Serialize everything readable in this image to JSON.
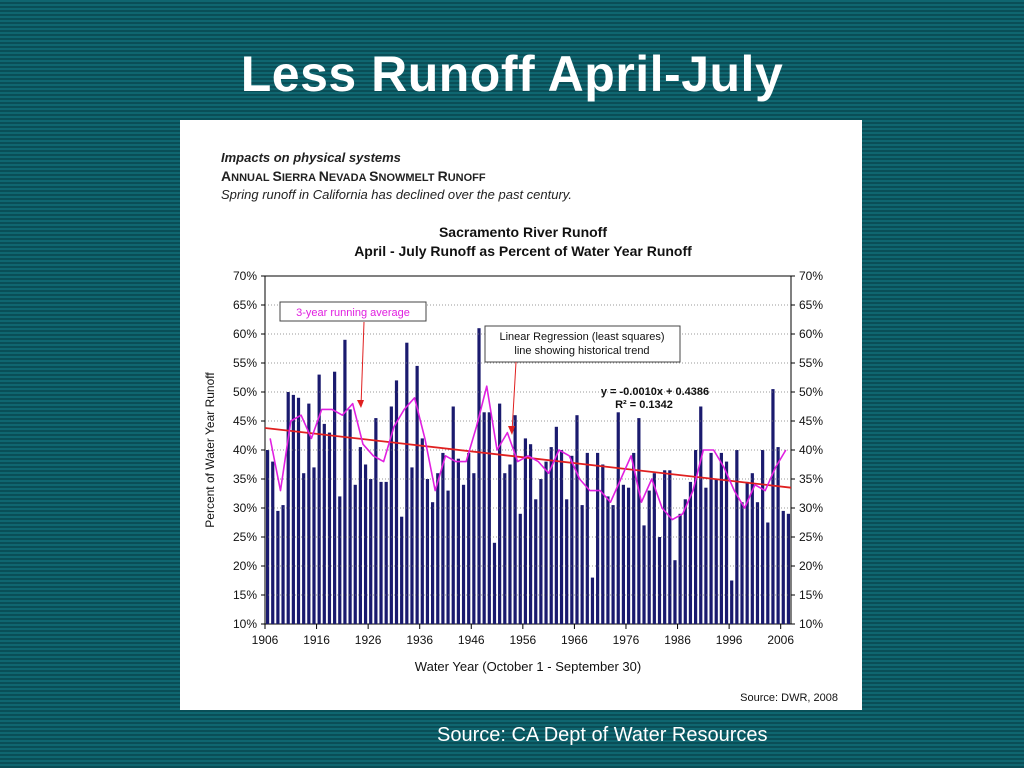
{
  "slide": {
    "title": "Less Runoff April-July",
    "source": "Source: CA Dept of Water Resources"
  },
  "figure": {
    "header_line1": "Impacts on physical systems",
    "header_line2_parts": [
      "A",
      "NNUAL ",
      "S",
      "IERRA ",
      "N",
      "EVADA ",
      "S",
      "NOWMELT ",
      "R",
      "UNOFF"
    ],
    "header_line3": "Spring runoff in California has declined over the past century.",
    "footer_source": "Source:  DWR, 2008"
  },
  "colors": {
    "background": "#0d5d67",
    "bars": "#1a1a6e",
    "running_avg": "#e020e0",
    "regression": "#e02020",
    "annotation_text": "#e020e0"
  },
  "chart_data": {
    "type": "bar",
    "title": "Sacramento River Runoff",
    "subtitle": "April - July Runoff as Percent of Water Year Runoff",
    "xlabel": "Water Year  (October 1 - September 30)",
    "ylabel": "Percent of Water Year Runoff",
    "xlim": [
      1906,
      2008
    ],
    "ylim": [
      10,
      70
    ],
    "x_ticks": [
      "1906",
      "1916",
      "1926",
      "1936",
      "1946",
      "1956",
      "1966",
      "1976",
      "1986",
      "1996",
      "2006"
    ],
    "y_ticks": [
      "10%",
      "15%",
      "20%",
      "25%",
      "30%",
      "35%",
      "40%",
      "45%",
      "50%",
      "55%",
      "60%",
      "65%",
      "70%"
    ],
    "annotations": {
      "running_avg_label": "3-year running average",
      "regression_label_line1": "Linear Regression (least squares)",
      "regression_label_line2": "line showing historical trend",
      "equation": "y = -0.0010x + 0.4386",
      "r_squared": "R² = 0.1342"
    },
    "regression": {
      "start": 43.8,
      "end": 33.5
    },
    "series": [
      {
        "type": "bar",
        "x": [
          1906,
          1907,
          1908,
          1909,
          1910,
          1911,
          1912,
          1913,
          1914,
          1915,
          1916,
          1917,
          1918,
          1919,
          1920,
          1921,
          1922,
          1923,
          1924,
          1925,
          1926,
          1927,
          1928,
          1929,
          1930,
          1931,
          1932,
          1933,
          1934,
          1935,
          1936,
          1937,
          1938,
          1939,
          1940,
          1941,
          1942,
          1943,
          1944,
          1945,
          1946,
          1947,
          1948,
          1949,
          1950,
          1951,
          1952,
          1953,
          1954,
          1955,
          1956,
          1957,
          1958,
          1959,
          1960,
          1961,
          1962,
          1963,
          1964,
          1965,
          1966,
          1967,
          1968,
          1969,
          1970,
          1971,
          1972,
          1973,
          1974,
          1975,
          1976,
          1977,
          1978,
          1979,
          1980,
          1981,
          1982,
          1983,
          1984,
          1985,
          1986,
          1987,
          1988,
          1989,
          1990,
          1991,
          1992,
          1993,
          1994,
          1995,
          1996,
          1997,
          1998,
          1999,
          2000,
          2001,
          2002,
          2003,
          2004,
          2005,
          2006,
          2007
        ],
        "values": [
          40,
          38,
          29.5,
          30.5,
          50,
          49.5,
          49,
          36,
          48,
          37,
          53,
          44.5,
          43,
          53.5,
          32,
          59,
          47,
          34,
          40.5,
          37.5,
          35,
          45.5,
          34.5,
          34.5,
          47.5,
          52,
          28.5,
          58.5,
          37,
          54.5,
          42,
          35,
          31,
          36,
          39.5,
          33,
          47.5,
          38.5,
          34,
          39.5,
          36,
          61,
          46.5,
          46.5,
          24,
          48,
          36,
          37.5,
          46,
          29,
          42,
          41,
          31.5,
          35,
          38,
          40.5,
          44,
          40,
          31.5,
          39,
          46,
          30.5,
          39.5,
          18,
          39.5,
          37.5,
          32,
          30.5,
          46.5,
          34,
          33.5,
          39.5,
          45.5,
          27,
          33,
          36,
          25,
          36.5,
          36.5,
          21,
          29,
          31.5,
          34.5,
          40,
          47.5,
          33.5,
          39.5,
          35,
          39.5,
          38,
          17.5,
          40,
          31,
          34.5,
          36,
          31,
          40,
          27.5,
          50.5,
          40.5,
          29.5,
          29
        ]
      },
      {
        "type": "line",
        "name": "3-year running average",
        "x": [
          1907,
          1909,
          1911,
          1913,
          1915,
          1917,
          1919,
          1921,
          1923,
          1925,
          1927,
          1929,
          1931,
          1933,
          1935,
          1937,
          1939,
          1941,
          1943,
          1945,
          1947,
          1949,
          1951,
          1953,
          1955,
          1957,
          1959,
          1961,
          1963,
          1965,
          1967,
          1969,
          1971,
          1973,
          1975,
          1977,
          1979,
          1981,
          1983,
          1985,
          1987,
          1989,
          1991,
          1993,
          1995,
          1997,
          1999,
          2001,
          2003,
          2005,
          2007
        ],
        "values": [
          42,
          33,
          45,
          46,
          42,
          47,
          47,
          46,
          48,
          41,
          39,
          38,
          44,
          47,
          49,
          42,
          33,
          39,
          38,
          38,
          44,
          51,
          40,
          43,
          38,
          39,
          38,
          36,
          40,
          39,
          35,
          33,
          33,
          31,
          35,
          39,
          31,
          35,
          30,
          28,
          29,
          33,
          40,
          40,
          37,
          33,
          30,
          34,
          33,
          37,
          40
        ]
      }
    ]
  }
}
